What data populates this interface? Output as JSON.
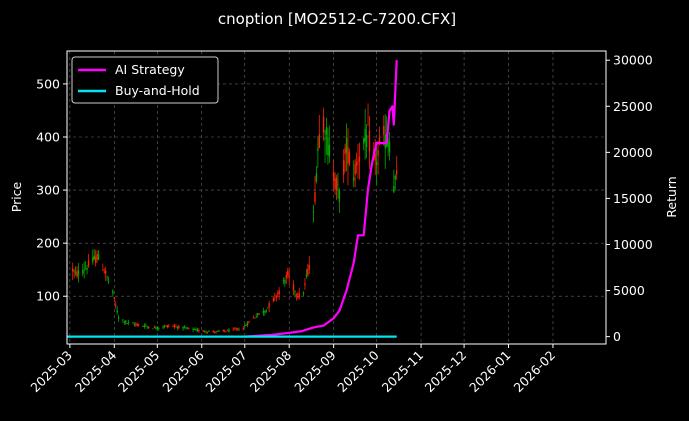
{
  "chart_data": {
    "type": "line",
    "title": "cnoption [MO2512-C-7200.CFX]",
    "ylabel": "Price",
    "y2label": "Return",
    "x_ticks": [
      "2025-03",
      "2025-04",
      "2025-05",
      "2025-06",
      "2025-07",
      "2025-08",
      "2025-09",
      "2025-10",
      "2025-11",
      "2025-12",
      "2026-01",
      "2026-02"
    ],
    "x_range": [
      "2025-02-27",
      "2026-03-10"
    ],
    "y_ticks": [
      100,
      200,
      300,
      400,
      500
    ],
    "y_range": [
      10,
      562
    ],
    "y2_ticks": [
      0,
      5000,
      10000,
      15000,
      20000,
      25000,
      30000
    ],
    "y2_range": [
      -800,
      31000
    ],
    "grid": true,
    "legend_position": "top-left",
    "colors": {
      "up": "#00aa00",
      "down": "#ff2200",
      "strategy": "#ff00ff",
      "buyhold": "#00e5ee",
      "grid": "#666666",
      "background": "#000000"
    },
    "price_anchors": [
      [
        "2025-03-01",
        160
      ],
      [
        "2025-03-05",
        140
      ],
      [
        "2025-03-10",
        150
      ],
      [
        "2025-03-15",
        160
      ],
      [
        "2025-03-20",
        175
      ],
      [
        "2025-03-25",
        150
      ],
      [
        "2025-03-31",
        105
      ],
      [
        "2025-04-04",
        60
      ],
      [
        "2025-04-10",
        50
      ],
      [
        "2025-04-20",
        45
      ],
      [
        "2025-04-30",
        40
      ],
      [
        "2025-05-10",
        45
      ],
      [
        "2025-05-20",
        40
      ],
      [
        "2025-05-31",
        35
      ],
      [
        "2025-06-10",
        33
      ],
      [
        "2025-06-20",
        35
      ],
      [
        "2025-06-30",
        40
      ],
      [
        "2025-07-05",
        55
      ],
      [
        "2025-07-10",
        65
      ],
      [
        "2025-07-15",
        72
      ],
      [
        "2025-07-20",
        90
      ],
      [
        "2025-07-25",
        110
      ],
      [
        "2025-07-28",
        125
      ],
      [
        "2025-07-31",
        140
      ],
      [
        "2025-08-05",
        110
      ],
      [
        "2025-08-10",
        95
      ],
      [
        "2025-08-15",
        160
      ],
      [
        "2025-08-18",
        250
      ],
      [
        "2025-08-21",
        380
      ],
      [
        "2025-08-24",
        450
      ],
      [
        "2025-08-27",
        400
      ],
      [
        "2025-09-01",
        330
      ],
      [
        "2025-09-05",
        290
      ],
      [
        "2025-09-10",
        380
      ],
      [
        "2025-09-15",
        330
      ],
      [
        "2025-09-20",
        380
      ],
      [
        "2025-09-25",
        400
      ],
      [
        "2025-09-30",
        350
      ],
      [
        "2025-10-05",
        400
      ],
      [
        "2025-10-10",
        390
      ],
      [
        "2025-10-12",
        300
      ],
      [
        "2025-10-15",
        320
      ]
    ],
    "series": [
      {
        "name": "AI Strategy",
        "axis": "right",
        "points": [
          [
            "2025-07-01",
            0
          ],
          [
            "2025-07-20",
            200
          ],
          [
            "2025-08-01",
            400
          ],
          [
            "2025-08-10",
            600
          ],
          [
            "2025-08-18",
            1000
          ],
          [
            "2025-08-25",
            1200
          ],
          [
            "2025-09-01",
            2000
          ],
          [
            "2025-09-05",
            2800
          ],
          [
            "2025-09-10",
            5000
          ],
          [
            "2025-09-15",
            8000
          ],
          [
            "2025-09-18",
            11000
          ],
          [
            "2025-09-22",
            11000
          ],
          [
            "2025-09-25",
            16000
          ],
          [
            "2025-09-28",
            19000
          ],
          [
            "2025-10-01",
            21000
          ],
          [
            "2025-10-05",
            21000
          ],
          [
            "2025-10-08",
            21000
          ],
          [
            "2025-10-10",
            24500
          ],
          [
            "2025-10-12",
            25000
          ],
          [
            "2025-10-13",
            23000
          ],
          [
            "2025-10-15",
            30000
          ]
        ]
      },
      {
        "name": "Buy-and-Hold",
        "axis": "right",
        "points": [
          [
            "2025-02-27",
            0
          ],
          [
            "2025-10-15",
            0
          ]
        ]
      }
    ]
  }
}
